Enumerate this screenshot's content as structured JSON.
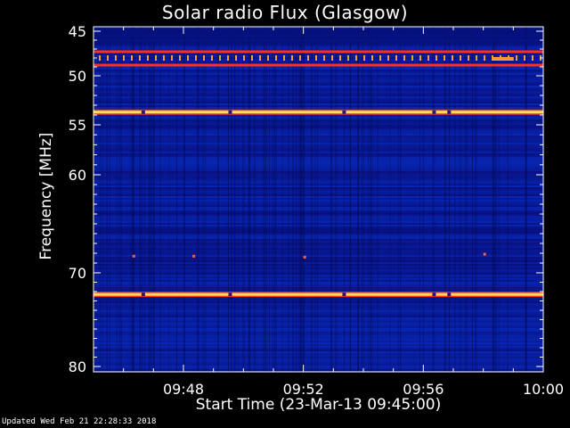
{
  "chart_data": {
    "type": "heatmap",
    "title": "Solar radio Flux (Glasgow)",
    "xlabel": "Start Time (23-Mar-13 09:45:00)",
    "ylabel": "Frequency [MHz]",
    "x_ticks": [
      "09:48",
      "09:52",
      "09:56",
      "10:00"
    ],
    "y_ticks": [
      "45",
      "50",
      "55",
      "60",
      "70",
      "80"
    ],
    "xlim_minutes_after_start": [
      0,
      15
    ],
    "ylim_mhz": [
      45,
      80
    ],
    "emission_bands_mhz": [
      {
        "freq": 47.3,
        "kind": "line-red"
      },
      {
        "freq": 48.0,
        "kind": "dashed-orange"
      },
      {
        "freq": 48.8,
        "kind": "line-red"
      },
      {
        "freq": 53.7,
        "kind": "bright-yellow"
      },
      {
        "freq": 72.3,
        "kind": "bright-yellow"
      }
    ],
    "colors": {
      "background": "#000000",
      "base": "#0a1a8c",
      "hot": "#ffe060",
      "warm": "#ff3020",
      "axis": "#ffffff"
    }
  },
  "footer": "Updated Wed Feb 21 22:28:33 2018"
}
